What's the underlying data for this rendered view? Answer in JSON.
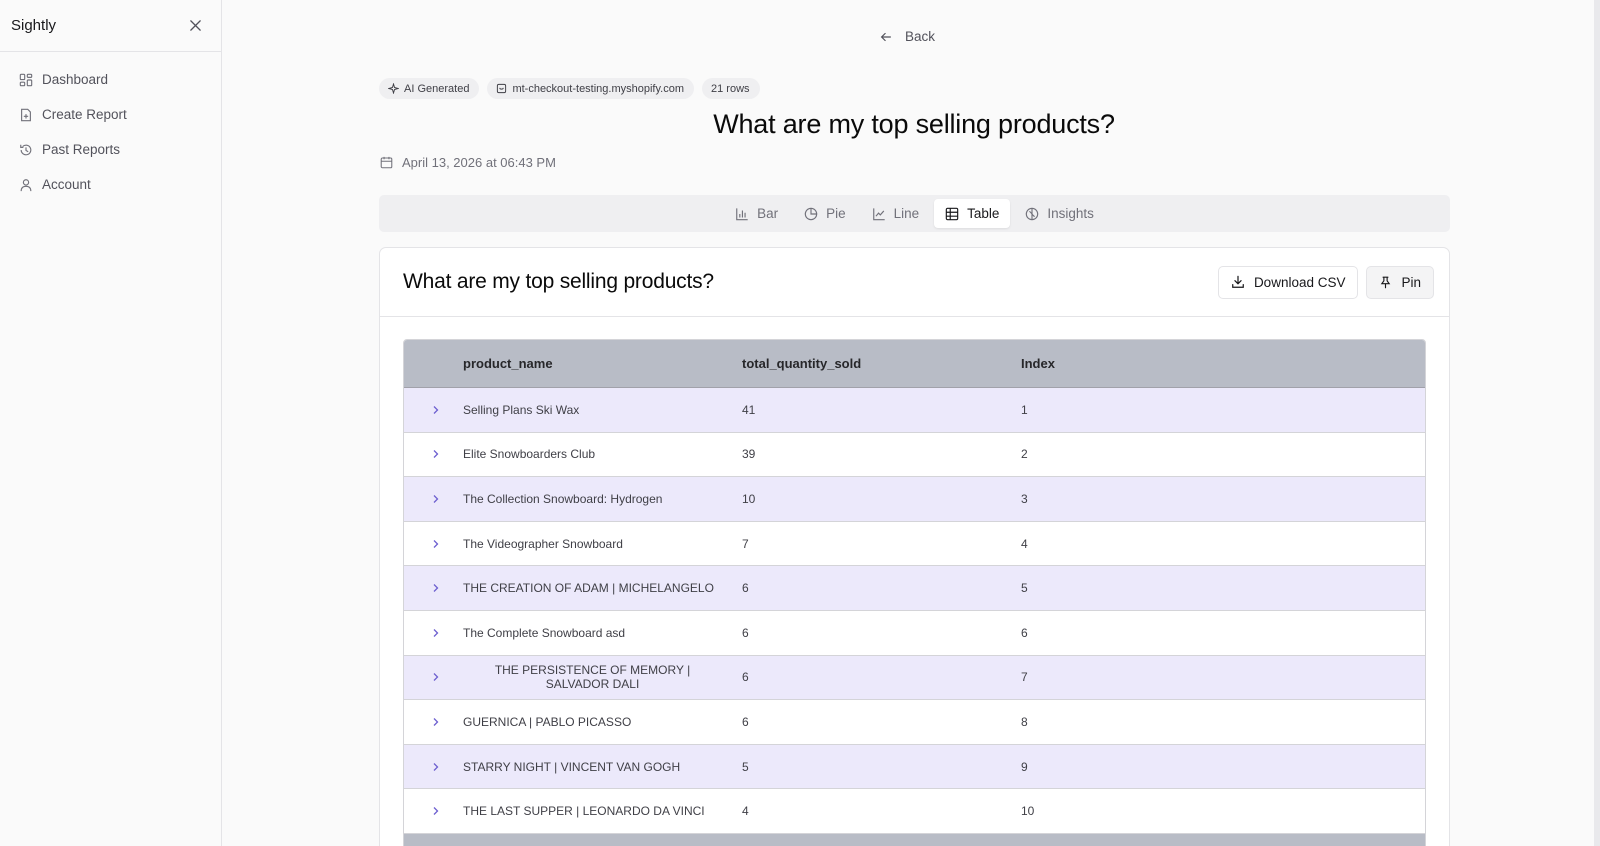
{
  "sidebar": {
    "brand": "Sightly",
    "items": [
      {
        "label": "Dashboard",
        "icon": "layout-grid-icon"
      },
      {
        "label": "Create Report",
        "icon": "file-plus-icon"
      },
      {
        "label": "Past Reports",
        "icon": "history-icon"
      },
      {
        "label": "Account",
        "icon": "user-icon"
      }
    ]
  },
  "header": {
    "back_label": "Back",
    "badges": [
      {
        "label": "AI Generated",
        "icon": "sparkles-icon"
      },
      {
        "label": "mt-checkout-testing.myshopify.com",
        "icon": "store-icon"
      },
      {
        "label": "21 rows",
        "icon": ""
      }
    ],
    "title": "What are my top selling products?",
    "date": "April 13, 2026 at 06:43 PM"
  },
  "tabs": [
    {
      "label": "Bar",
      "icon": "bar-chart-icon"
    },
    {
      "label": "Pie",
      "icon": "pie-chart-icon"
    },
    {
      "label": "Line",
      "icon": "line-chart-icon"
    },
    {
      "label": "Table",
      "icon": "table-icon",
      "active": true
    },
    {
      "label": "Insights",
      "icon": "insights-icon"
    }
  ],
  "card": {
    "title": "What are my top selling products?",
    "download_label": "Download CSV",
    "pin_label": "Pin"
  },
  "table": {
    "columns": [
      "product_name",
      "total_quantity_sold",
      "Index"
    ],
    "rows": [
      {
        "product_name": "Selling Plans Ski Wax",
        "total_quantity_sold": "41",
        "index": "1"
      },
      {
        "product_name": "Elite Snowboarders Club",
        "total_quantity_sold": "39",
        "index": "2"
      },
      {
        "product_name": "The Collection Snowboard: Hydrogen",
        "total_quantity_sold": "10",
        "index": "3"
      },
      {
        "product_name": "The Videographer Snowboard",
        "total_quantity_sold": "7",
        "index": "4"
      },
      {
        "product_name": "THE CREATION OF ADAM | MICHELANGELO",
        "total_quantity_sold": "6",
        "index": "5"
      },
      {
        "product_name": "The Complete Snowboard asd",
        "total_quantity_sold": "6",
        "index": "6"
      },
      {
        "product_name": "THE PERSISTENCE OF MEMORY | SALVADOR DALI",
        "total_quantity_sold": "6",
        "index": "7"
      },
      {
        "product_name": "GUERNICA | PABLO PICASSO",
        "total_quantity_sold": "6",
        "index": "8"
      },
      {
        "product_name": "STARRY NIGHT | VINCENT VAN GOGH",
        "total_quantity_sold": "5",
        "index": "9"
      },
      {
        "product_name": "THE LAST SUPPER | LEONARDO DA VINCI",
        "total_quantity_sold": "4",
        "index": "10"
      }
    ]
  },
  "colors": {
    "header_row": "#b8bcc6",
    "odd_row": "#ece9fb",
    "chevron": "#6d5fd0"
  }
}
